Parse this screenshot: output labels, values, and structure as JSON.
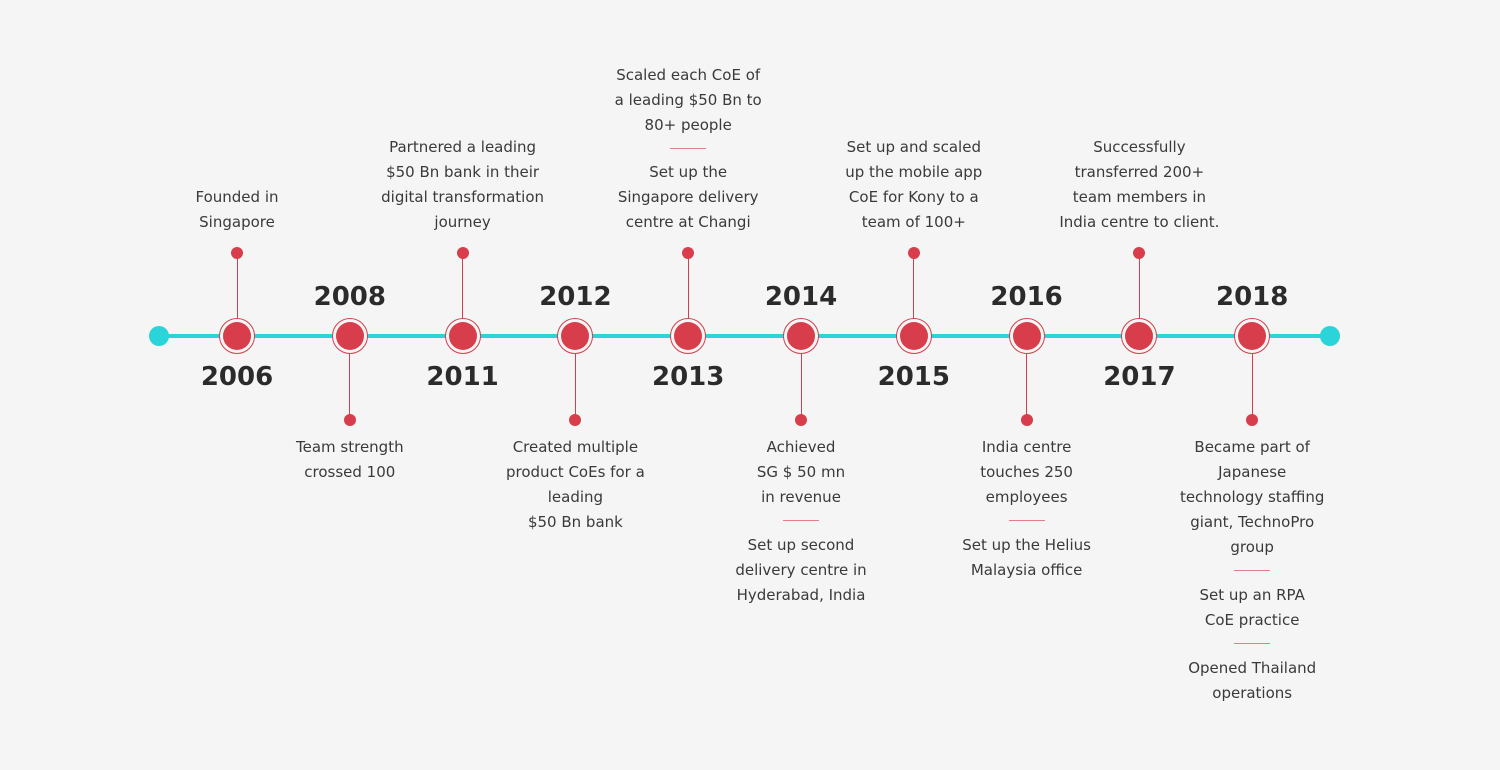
{
  "colors": {
    "axis": "#2ad4d8",
    "node": "#d73d4b",
    "text": "#3a3a3a",
    "year": "#2b2b2b",
    "background": "#f5f5f5"
  },
  "milestones": [
    {
      "year": "2006",
      "side": "above",
      "texts": [
        "Founded in\nSingapore"
      ]
    },
    {
      "year": "2008",
      "side": "below",
      "texts": [
        "Team strength\ncrossed 100"
      ]
    },
    {
      "year": "2011",
      "side": "above",
      "texts": [
        "Partnered a leading\n$50 Bn bank in their\ndigital transformation\njourney"
      ]
    },
    {
      "year": "2012",
      "side": "below",
      "texts": [
        "Created multiple\nproduct CoEs for a\nleading\n$50 Bn bank"
      ]
    },
    {
      "year": "2013",
      "side": "above",
      "texts": [
        "Scaled each CoE of\na leading $50 Bn to\n80+ people",
        "Set up the\nSingapore delivery\ncentre at Changi"
      ]
    },
    {
      "year": "2014",
      "side": "below",
      "texts": [
        "Achieved\nSG $ 50 mn\nin revenue",
        "Set up second\ndelivery centre in\nHyderabad, India"
      ]
    },
    {
      "year": "2015",
      "side": "above",
      "texts": [
        "Set up and scaled\nup the mobile app\nCoE for Kony to a\nteam of 100+"
      ]
    },
    {
      "year": "2016",
      "side": "below",
      "texts": [
        "India centre\ntouches 250\nemployees",
        "Set up the Helius\nMalaysia office"
      ]
    },
    {
      "year": "2017",
      "side": "above",
      "texts": [
        "Successfully\ntransferred 200+\nteam members in\nIndia centre to client."
      ]
    },
    {
      "year": "2018",
      "side": "below",
      "texts": [
        "Became part of\nJapanese\ntechnology staffing\ngiant, TechnoPro\ngroup",
        "Set up an RPA\nCoE practice",
        "Opened Thailand\noperations"
      ]
    }
  ]
}
